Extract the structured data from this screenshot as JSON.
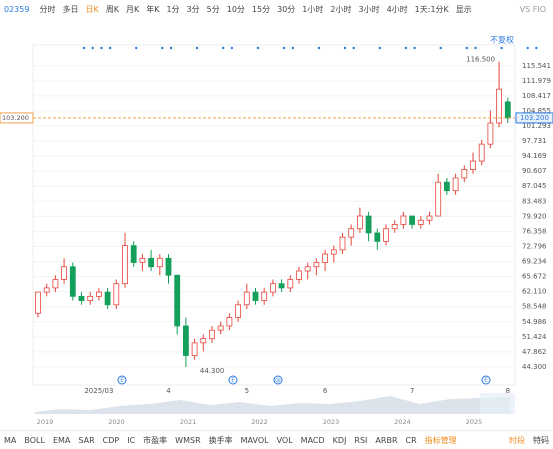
{
  "symbol": "02359",
  "toolbar": [
    "分时",
    "多日",
    "日K",
    "周K",
    "月K",
    "年K",
    "1分",
    "3分",
    "5分",
    "10分",
    "15分",
    "30分",
    "1小时",
    "2小时",
    "3小时",
    "4小时",
    "1天:1分K",
    "显示"
  ],
  "active_tab": "日K",
  "compare": "VS FIO",
  "adjust": "不复权",
  "chart_data": {
    "type": "candlestick",
    "categories": [
      null,
      null,
      null,
      null,
      null,
      null,
      null,
      "2025/03",
      null,
      null,
      null,
      null,
      null,
      null,
      null,
      "4",
      null,
      null,
      null,
      null,
      null,
      null,
      null,
      null,
      "5",
      null,
      null,
      null,
      null,
      null,
      null,
      null,
      null,
      "6",
      null,
      null,
      null,
      null,
      null,
      null,
      null,
      null,
      null,
      "7",
      null,
      null,
      null,
      null,
      null,
      null,
      null,
      null,
      null,
      null,
      "8"
    ],
    "open": [
      57,
      62,
      63,
      65,
      68,
      61,
      60,
      61,
      62,
      59,
      64,
      73,
      69,
      70,
      68,
      70,
      66,
      54,
      47,
      50,
      51,
      53,
      54,
      56,
      59,
      62,
      60,
      62,
      64,
      63,
      65,
      67,
      68,
      69,
      71,
      72,
      75,
      77,
      80,
      76,
      74,
      77,
      78,
      80,
      78,
      79,
      80,
      88,
      86,
      89,
      91,
      93,
      97,
      102,
      107
    ],
    "high": [
      62,
      64,
      66,
      70,
      69,
      62,
      62,
      63,
      63,
      65,
      76,
      74,
      71,
      72,
      71,
      71,
      66,
      56,
      51,
      52,
      54,
      55,
      57,
      60,
      64,
      63,
      63,
      65,
      65,
      66,
      68,
      69,
      70,
      72,
      73,
      76,
      78,
      82,
      81,
      77,
      78,
      79,
      81,
      80,
      80,
      81,
      90,
      89,
      90,
      92,
      95,
      98,
      105,
      116.5,
      108
    ],
    "low": [
      56,
      61,
      62,
      64,
      60,
      59,
      59,
      60,
      58,
      58,
      63,
      68,
      67,
      67,
      66,
      64,
      52,
      44.3,
      46,
      48,
      50,
      52,
      53,
      55,
      58,
      59,
      59,
      61,
      62,
      62,
      64,
      65,
      66,
      67,
      69,
      71,
      73,
      76,
      74,
      72,
      73,
      76,
      77,
      77,
      77,
      78,
      80,
      85,
      85,
      88,
      90,
      92,
      96,
      101,
      102
    ],
    "close": [
      62,
      63,
      65,
      68,
      61,
      60,
      61,
      62,
      59,
      64,
      73,
      69,
      70,
      68,
      70,
      66,
      54,
      47,
      50,
      51,
      53,
      54,
      56,
      59,
      62,
      60,
      62,
      64,
      63,
      65,
      67,
      68,
      69,
      71,
      72,
      75,
      77,
      80,
      76,
      74,
      77,
      78,
      80,
      78,
      79,
      80,
      88,
      86,
      89,
      91,
      93,
      97,
      102,
      110,
      103.2
    ],
    "up_color": "#e8463c",
    "down_color": "#14a05a",
    "ylim": [
      40.03,
      120.45
    ],
    "yticks": [
      115.541,
      111.979,
      108.417,
      104.855,
      101.293,
      97.731,
      94.169,
      90.607,
      87.045,
      83.483,
      {
        "value": 79.92,
        "label": "79.920"
      },
      76.358,
      72.796,
      69.234,
      65.672,
      {
        "value": 62.11,
        "label": "62.110"
      },
      58.548,
      54.986,
      51.424,
      47.862,
      {
        "value": 44.3,
        "label": "44.300"
      }
    ],
    "last_price": {
      "value": 103.2,
      "label": "103.200"
    },
    "high_label": "116.500",
    "low_label": "44.300",
    "events": [
      "E",
      "E",
      "@",
      "E"
    ]
  },
  "navigator": {
    "years": [
      "2019",
      "2020",
      "2021",
      "2022",
      "2023",
      "2024",
      "2025"
    ]
  },
  "indicators": [
    "MA",
    "BOLL",
    "EMA",
    "SAR",
    "CDP",
    "IC",
    "市盈率",
    "WMSR",
    "换手率",
    "MAVOL",
    "VOL",
    "MACD",
    "KDJ",
    "RSI",
    "ARBR",
    "CR"
  ],
  "indicator_manage": "指标管理",
  "right_tabs": [
    "时段",
    "特码"
  ]
}
